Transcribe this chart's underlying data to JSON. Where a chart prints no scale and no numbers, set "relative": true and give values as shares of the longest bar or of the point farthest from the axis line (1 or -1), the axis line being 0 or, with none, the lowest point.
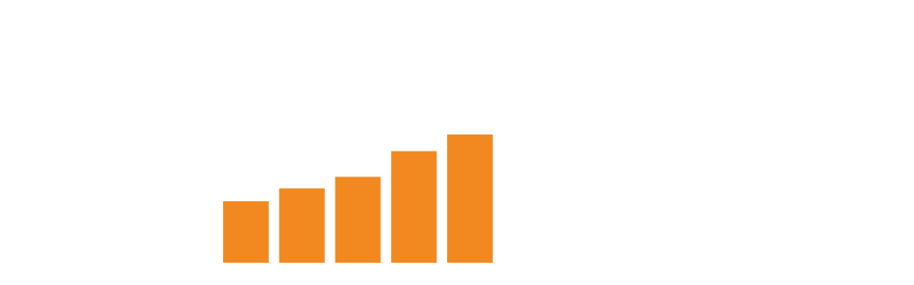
{
  "chart_data": {
    "type": "bar",
    "categories": [
      null,
      null,
      null,
      null,
      null
    ],
    "values": [
      0.48,
      0.58,
      0.67,
      0.87,
      1
    ],
    "color": "#f28920",
    "relative": true
  }
}
